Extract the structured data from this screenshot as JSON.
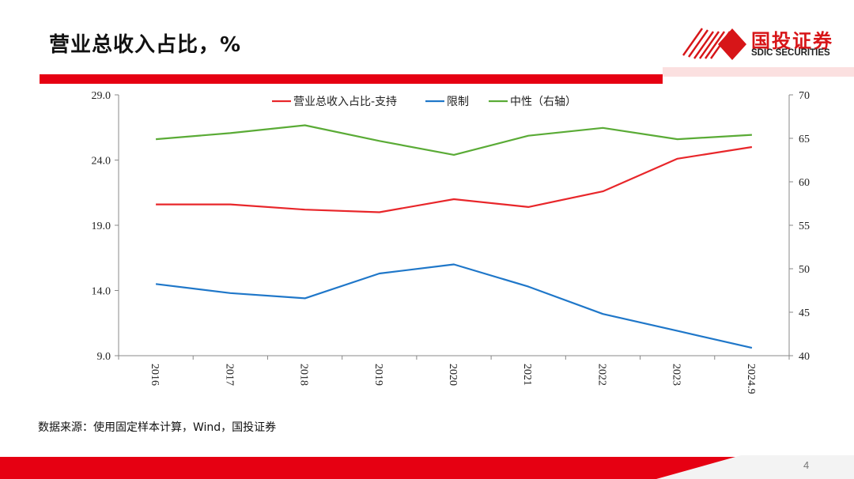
{
  "header": {
    "title": "营业总收入占比，%",
    "logo_cn": "国投证券",
    "logo_en": "SDIC SECURITIES"
  },
  "colors": {
    "brand_red": "#e60012",
    "support": "#e8262a",
    "restrict": "#1f77c9",
    "neutral": "#5aab36"
  },
  "chart_data": {
    "type": "line",
    "x": [
      "2016",
      "2017",
      "2018",
      "2019",
      "2020",
      "2021",
      "2022",
      "2023",
      "2024.9"
    ],
    "series": [
      {
        "name": "营业总收入占比-支持",
        "axis": "left",
        "values": [
          20.6,
          20.6,
          20.2,
          20.0,
          21.0,
          20.4,
          21.6,
          24.1,
          25.0
        ]
      },
      {
        "name": "限制",
        "axis": "left",
        "values": [
          14.5,
          13.8,
          13.4,
          15.3,
          16.0,
          14.3,
          12.2,
          10.9,
          9.6
        ]
      },
      {
        "name": "中性（右轴）",
        "axis": "right",
        "values": [
          64.9,
          65.6,
          66.5,
          64.7,
          63.1,
          65.3,
          66.2,
          64.9,
          65.4
        ]
      }
    ],
    "y_left": {
      "ylim": [
        9.0,
        29.0
      ],
      "ticks": [
        "29.0",
        "24.0",
        "19.0",
        "14.0",
        "9.0"
      ]
    },
    "y_right": {
      "ylim": [
        40,
        70
      ],
      "ticks": [
        "70",
        "65",
        "60",
        "55",
        "50",
        "45",
        "40"
      ]
    },
    "legend": "top-center",
    "grid": false
  },
  "footer": {
    "source": "数据来源：使用固定样本计算，Wind，国投证券",
    "page": "4"
  }
}
